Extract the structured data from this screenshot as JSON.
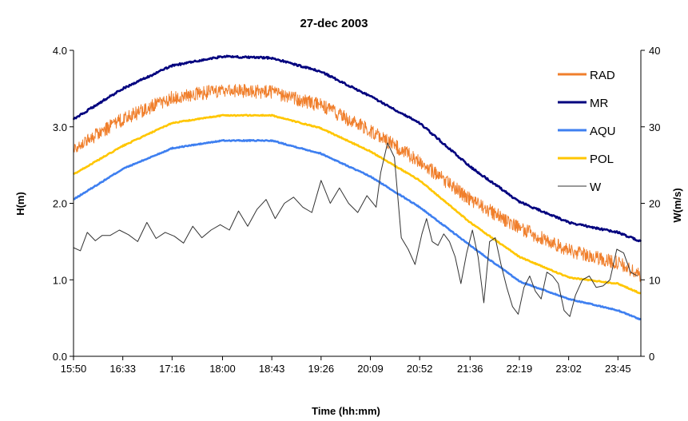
{
  "chart_data": {
    "type": "line",
    "title": "27-dec 2003",
    "xlabel": "Time (hh:mm)",
    "ylabel": "H(m)",
    "y2label": "W(m/s)",
    "x_ticks": [
      "15:50",
      "16:33",
      "17:16",
      "18:00",
      "18:43",
      "19:26",
      "20:09",
      "20:52",
      "21:36",
      "22:19",
      "23:02",
      "23:45"
    ],
    "x_range": [
      "15:50",
      "24:05"
    ],
    "ylim": [
      0,
      4
    ],
    "y_ticks": [
      "0.0",
      "1.0",
      "2.0",
      "3.0",
      "4.0"
    ],
    "y2lim": [
      0,
      40
    ],
    "y2_ticks": [
      "0",
      "10",
      "20",
      "30",
      "40"
    ],
    "grid": false,
    "legend_position": "right",
    "series": [
      {
        "name": "RAD",
        "axis": "left",
        "color": "#F07F2C",
        "noise": 0.09,
        "x": [
          "15:50",
          "16:33",
          "17:16",
          "18:00",
          "18:43",
          "19:26",
          "20:09",
          "20:52",
          "21:36",
          "22:19",
          "23:02",
          "23:45",
          "24:05"
        ],
        "y": [
          2.72,
          3.1,
          3.38,
          3.48,
          3.45,
          3.28,
          2.95,
          2.55,
          2.05,
          1.68,
          1.38,
          1.22,
          1.05
        ]
      },
      {
        "name": "MR",
        "axis": "left",
        "color": "#00007E",
        "noise": 0.012,
        "x": [
          "15:50",
          "16:33",
          "17:16",
          "18:00",
          "18:43",
          "19:26",
          "20:09",
          "20:52",
          "21:36",
          "22:19",
          "23:02",
          "23:45",
          "24:05"
        ],
        "y": [
          3.1,
          3.5,
          3.8,
          3.92,
          3.9,
          3.72,
          3.4,
          3.05,
          2.48,
          2.02,
          1.75,
          1.62,
          1.5
        ]
      },
      {
        "name": "AQU",
        "axis": "left",
        "color": "#3E7FF0",
        "noise": 0.007,
        "x": [
          "15:50",
          "16:33",
          "17:16",
          "18:00",
          "18:43",
          "19:26",
          "20:09",
          "20:52",
          "21:36",
          "22:19",
          "23:02",
          "23:45",
          "24:05"
        ],
        "y": [
          2.05,
          2.45,
          2.72,
          2.82,
          2.82,
          2.65,
          2.35,
          1.95,
          1.45,
          0.98,
          0.75,
          0.6,
          0.48
        ]
      },
      {
        "name": "POL",
        "axis": "left",
        "color": "#FFC600",
        "noise": 0.007,
        "x": [
          "15:50",
          "16:33",
          "17:16",
          "18:00",
          "18:43",
          "19:26",
          "20:09",
          "20:52",
          "21:36",
          "22:19",
          "23:02",
          "23:45",
          "24:05"
        ],
        "y": [
          2.38,
          2.75,
          3.05,
          3.15,
          3.15,
          2.98,
          2.68,
          2.3,
          1.75,
          1.3,
          1.03,
          0.95,
          0.82
        ]
      },
      {
        "name": "W",
        "axis": "right",
        "color": "#333333",
        "noise": 0,
        "x": [
          "15:50",
          "15:56",
          "16:02",
          "16:09",
          "16:15",
          "16:22",
          "16:30",
          "16:38",
          "16:46",
          "16:54",
          "17:02",
          "17:10",
          "17:18",
          "17:26",
          "17:34",
          "17:42",
          "17:50",
          "17:58",
          "18:06",
          "18:14",
          "18:22",
          "18:30",
          "18:38",
          "18:46",
          "18:54",
          "19:02",
          "19:10",
          "19:18",
          "19:26",
          "19:34",
          "19:42",
          "19:50",
          "19:58",
          "20:06",
          "20:14",
          "20:18",
          "20:24",
          "20:30",
          "20:36",
          "20:42",
          "20:48",
          "20:54",
          "20:58",
          "21:03",
          "21:08",
          "21:13",
          "21:18",
          "21:23",
          "21:28",
          "21:33",
          "21:38",
          "21:43",
          "21:48",
          "21:53",
          "21:58",
          "22:03",
          "22:08",
          "22:13",
          "22:18",
          "22:23",
          "22:28",
          "22:33",
          "22:38",
          "22:43",
          "22:48",
          "22:53",
          "22:58",
          "23:03",
          "23:08",
          "23:14",
          "23:20",
          "23:26",
          "23:32",
          "23:38",
          "23:44",
          "23:50",
          "23:56",
          "24:02"
        ],
        "y": [
          14.2,
          13.8,
          16.2,
          15.1,
          15.8,
          15.8,
          16.5,
          15.9,
          15.0,
          17.5,
          15.4,
          16.2,
          15.7,
          14.8,
          17.0,
          15.5,
          16.5,
          17.2,
          16.5,
          19.0,
          17.0,
          19.2,
          20.5,
          18.0,
          20.0,
          20.8,
          19.5,
          18.8,
          23.0,
          20.0,
          22.0,
          20.0,
          18.8,
          21.0,
          19.5,
          24.0,
          27.9,
          26.0,
          15.5,
          14.0,
          12.0,
          16.0,
          18.0,
          15.0,
          14.5,
          16.0,
          15.0,
          13.0,
          9.5,
          13.5,
          16.5,
          13.0,
          7.0,
          15.0,
          15.5,
          12.0,
          9.0,
          6.5,
          5.5,
          9.0,
          10.5,
          8.5,
          7.5,
          11.0,
          10.5,
          9.5,
          6.0,
          5.2,
          8.0,
          10.0,
          10.5,
          9.0,
          9.2,
          10.0,
          14.0,
          13.5,
          11.0,
          10.5
        ]
      }
    ]
  }
}
